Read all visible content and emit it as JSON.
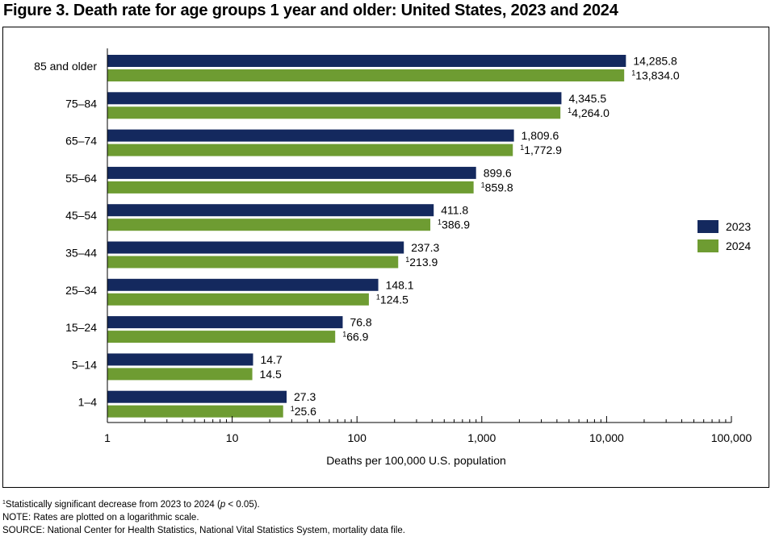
{
  "title": "Figure 3. Death rate for age groups 1 year and older: United States, 2023 and 2024",
  "chart_data": {
    "type": "bar",
    "orientation": "horizontal",
    "scale": "log",
    "categories": [
      "85 and older",
      "75–84",
      "65–74",
      "55–64",
      "45–54",
      "35–44",
      "25–34",
      "15–24",
      "5–14",
      "1–4"
    ],
    "series": [
      {
        "name": "2023",
        "color": "#14295e",
        "values": [
          14285.8,
          4345.5,
          1809.6,
          899.6,
          411.8,
          237.3,
          148.1,
          76.8,
          14.7,
          27.3
        ],
        "labels": [
          "14,285.8",
          "4,345.5",
          "1,809.6",
          "899.6",
          "411.8",
          "237.3",
          "148.1",
          "76.8",
          "14.7",
          "27.3"
        ],
        "flags": [
          false,
          false,
          false,
          false,
          false,
          false,
          false,
          false,
          false,
          false
        ]
      },
      {
        "name": "2024",
        "color": "#6e9c32",
        "values": [
          13834.0,
          4264.0,
          1772.9,
          859.8,
          386.9,
          213.9,
          124.5,
          66.9,
          14.5,
          25.6
        ],
        "labels": [
          "13,834.0",
          "4,264.0",
          "1,772.9",
          "859.8",
          "386.9",
          "213.9",
          "124.5",
          "66.9",
          "14.5",
          "25.6"
        ],
        "flags": [
          true,
          true,
          true,
          true,
          true,
          true,
          true,
          true,
          false,
          true
        ]
      }
    ],
    "flag_marker": "1",
    "xlabel": "Deaths per 100,000 U.S. population",
    "xlim": [
      1,
      100000
    ],
    "ticks": [
      1,
      10,
      100,
      1000,
      10000,
      100000
    ],
    "tick_labels": [
      "1",
      "10",
      "100",
      "1,000",
      "10,000",
      "100,000"
    ],
    "legend_position": "right",
    "grid": false
  },
  "notes": {
    "footnote_marker": "1",
    "footnote": "Statistically significant decrease from 2023 to 2024 (",
    "footnote_p": "p",
    "footnote_end": " < 0.05).",
    "note": "NOTE: Rates are plotted on a logarithmic scale.",
    "source": "SOURCE: National Center for Health Statistics, National Vital Statistics System, mortality data file."
  }
}
